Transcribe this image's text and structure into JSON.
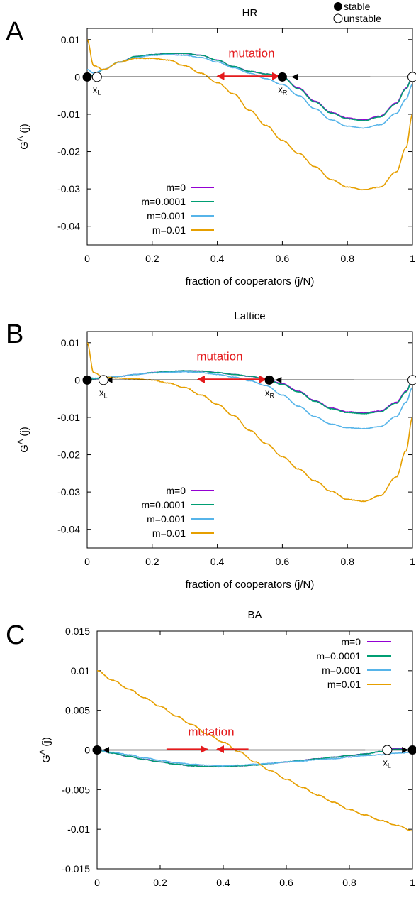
{
  "legend_key": {
    "stable": "stable",
    "unstable": "unstable"
  },
  "chart_data": [
    {
      "panel": "A",
      "type": "line",
      "title": "HR",
      "xlabel": "fraction of cooperators (j/N)",
      "ylabel": "G^A (j)",
      "xlim": [
        0,
        1
      ],
      "ylim": [
        -0.045,
        0.013
      ],
      "xticks": [
        0,
        0.2,
        0.4,
        0.6,
        0.8,
        1
      ],
      "xtick_labels": [
        "0",
        "0.2",
        "0.4",
        "0.6",
        "0.8",
        "1"
      ],
      "yticks": [
        0.01,
        0,
        -0.01,
        -0.02,
        -0.03,
        -0.04
      ],
      "ytick_labels": [
        "0.01",
        "0",
        "-0.01",
        "-0.02",
        "-0.03",
        "-0.04"
      ],
      "grid": false,
      "legend_position": "bottom-left",
      "annotation": "mutation",
      "fixed_points": [
        {
          "x": 0,
          "type": "stable",
          "label": ""
        },
        {
          "x": 0.03,
          "type": "unstable",
          "label": "x_L"
        },
        {
          "x": 0.6,
          "type": "stable",
          "label": "x_R"
        },
        {
          "x": 1,
          "type": "unstable",
          "label": ""
        }
      ],
      "flow_arrows": [
        {
          "from": 0.47,
          "to": 0.02
        },
        {
          "from": 0.87,
          "to": 0.63
        }
      ],
      "mutation_arrows": [
        {
          "from": 0.5,
          "to": 0.4
        },
        {
          "from": 0.5,
          "to": 0.59
        }
      ],
      "x": [
        0,
        0.02,
        0.05,
        0.1,
        0.15,
        0.2,
        0.25,
        0.3,
        0.35,
        0.4,
        0.45,
        0.5,
        0.55,
        0.6,
        0.65,
        0.7,
        0.75,
        0.8,
        0.85,
        0.9,
        0.95,
        0.98,
        1
      ],
      "series": [
        {
          "name": "m=0",
          "color": "#9400d3",
          "values": [
            0,
            0.0005,
            0.002,
            0.004,
            0.0055,
            0.006,
            0.0063,
            0.0063,
            0.0058,
            0.0045,
            0.0028,
            0.0015,
            0.0008,
            0,
            -0.003,
            -0.0065,
            -0.0095,
            -0.011,
            -0.0115,
            -0.0105,
            -0.007,
            -0.003,
            0
          ]
        },
        {
          "name": "m=0.0001",
          "color": "#009e73",
          "values": [
            0,
            0.0005,
            0.002,
            0.004,
            0.0055,
            0.006,
            0.0063,
            0.0063,
            0.0058,
            0.0045,
            0.0028,
            0.0015,
            0.0008,
            0,
            -0.0032,
            -0.0067,
            -0.0097,
            -0.0112,
            -0.0117,
            -0.0107,
            -0.0072,
            -0.0032,
            0
          ]
        },
        {
          "name": "m=0.001",
          "color": "#56b4e9",
          "values": [
            0.002,
            0.001,
            0.002,
            0.004,
            0.0052,
            0.0058,
            0.006,
            0.0058,
            0.0052,
            0.004,
            0.0025,
            0.001,
            -0.0005,
            -0.002,
            -0.005,
            -0.0085,
            -0.0115,
            -0.0132,
            -0.0137,
            -0.0128,
            -0.0098,
            -0.006,
            -0.002
          ]
        },
        {
          "name": "m=0.01",
          "color": "#e69f00",
          "values": [
            0.01,
            0.003,
            0.002,
            0.004,
            0.005,
            0.005,
            0.0045,
            0.003,
            0.001,
            -0.0015,
            -0.0045,
            -0.009,
            -0.013,
            -0.017,
            -0.0205,
            -0.024,
            -0.0275,
            -0.0295,
            -0.0302,
            -0.0295,
            -0.0255,
            -0.019,
            -0.01
          ]
        }
      ]
    },
    {
      "panel": "B",
      "type": "line",
      "title": "Lattice",
      "xlabel": "fraction of cooperators (j/N)",
      "ylabel": "G^A (j)",
      "xlim": [
        0,
        1
      ],
      "ylim": [
        -0.045,
        0.013
      ],
      "xticks": [
        0,
        0.2,
        0.4,
        0.6,
        0.8,
        1
      ],
      "xtick_labels": [
        "0",
        "0.2",
        "0.4",
        "0.6",
        "0.8",
        "1"
      ],
      "yticks": [
        0.01,
        0,
        -0.01,
        -0.02,
        -0.03,
        -0.04
      ],
      "ytick_labels": [
        "0.01",
        "0",
        "-0.01",
        "-0.02",
        "-0.03",
        "-0.04"
      ],
      "grid": false,
      "legend_position": "bottom-left",
      "annotation": "mutation",
      "fixed_points": [
        {
          "x": 0,
          "type": "stable",
          "label": ""
        },
        {
          "x": 0.05,
          "type": "unstable",
          "label": "x_L"
        },
        {
          "x": 0.56,
          "type": "stable",
          "label": "x_R"
        },
        {
          "x": 1,
          "type": "unstable",
          "label": ""
        }
      ],
      "flow_arrows": [
        {
          "from": 0.45,
          "to": 0.06
        },
        {
          "from": 0.82,
          "to": 0.58
        }
      ],
      "mutation_arrows": [
        {
          "from": 0.45,
          "to": 0.34
        },
        {
          "from": 0.45,
          "to": 0.55
        }
      ],
      "x": [
        0,
        0.02,
        0.05,
        0.1,
        0.15,
        0.2,
        0.25,
        0.3,
        0.35,
        0.4,
        0.45,
        0.5,
        0.55,
        0.6,
        0.65,
        0.7,
        0.75,
        0.8,
        0.85,
        0.9,
        0.95,
        0.98,
        1
      ],
      "series": [
        {
          "name": "m=0",
          "color": "#9400d3",
          "values": [
            0,
            0.0003,
            0.0006,
            0.001,
            0.0015,
            0.002,
            0.0023,
            0.0025,
            0.0024,
            0.002,
            0.0015,
            0.001,
            0.0003,
            -0.001,
            -0.003,
            -0.0055,
            -0.0075,
            -0.0085,
            -0.0088,
            -0.0083,
            -0.006,
            -0.003,
            0
          ]
        },
        {
          "name": "m=0.0001",
          "color": "#009e73",
          "values": [
            0,
            0.0003,
            0.0006,
            0.001,
            0.0015,
            0.002,
            0.0023,
            0.0025,
            0.0024,
            0.002,
            0.0015,
            0.001,
            0.0003,
            -0.0012,
            -0.0032,
            -0.0057,
            -0.0077,
            -0.0087,
            -0.009,
            -0.0085,
            -0.0062,
            -0.0032,
            0
          ]
        },
        {
          "name": "m=0.001",
          "color": "#56b4e9",
          "values": [
            0.001,
            0.0005,
            0.0007,
            0.001,
            0.0015,
            0.0019,
            0.0021,
            0.0022,
            0.002,
            0.0015,
            0.0008,
            -0.0002,
            -0.0015,
            -0.004,
            -0.007,
            -0.0098,
            -0.0118,
            -0.0128,
            -0.013,
            -0.0125,
            -0.0098,
            -0.006,
            -0.002
          ]
        },
        {
          "name": "m=0.01",
          "color": "#e69f00",
          "values": [
            0.01,
            0.002,
            0.0008,
            0.0005,
            0.0003,
            0,
            -0.0008,
            -0.002,
            -0.004,
            -0.0065,
            -0.0095,
            -0.0135,
            -0.017,
            -0.0205,
            -0.0238,
            -0.027,
            -0.0298,
            -0.032,
            -0.0325,
            -0.031,
            -0.026,
            -0.019,
            -0.01
          ]
        }
      ]
    },
    {
      "panel": "C",
      "type": "line",
      "title": "BA",
      "xlabel": "fraction of cooperators (j/N)",
      "ylabel": "G^A (j)",
      "xlim": [
        0,
        1
      ],
      "ylim": [
        -0.015,
        0.015
      ],
      "xticks": [
        0,
        0.2,
        0.4,
        0.6,
        0.8,
        1
      ],
      "xtick_labels": [
        "0",
        "0.2",
        "0.4",
        "0.6",
        "0.8",
        "1"
      ],
      "yticks": [
        0.015,
        0.01,
        0.005,
        0,
        -0.005,
        -0.01,
        -0.015
      ],
      "ytick_labels": [
        "0.015",
        "0.01",
        "0.005",
        "0",
        "-0.005",
        "-0.01",
        "-0.015"
      ],
      "grid": false,
      "legend_position": "top-right",
      "annotation": "mutation",
      "fixed_points": [
        {
          "x": 0,
          "type": "stable",
          "label": ""
        },
        {
          "x": 0.92,
          "type": "unstable",
          "label": "x_L"
        },
        {
          "x": 1,
          "type": "stable",
          "label": ""
        }
      ],
      "flow_arrows": [
        {
          "from": 0.85,
          "to": 0.02
        },
        {
          "from": 0.935,
          "to": 0.985
        }
      ],
      "mutation_arrows": [
        {
          "from": 0.22,
          "to": 0.35
        },
        {
          "from": 0.48,
          "to": 0.38
        }
      ],
      "x": [
        0,
        0.05,
        0.1,
        0.15,
        0.2,
        0.25,
        0.3,
        0.35,
        0.4,
        0.45,
        0.5,
        0.55,
        0.6,
        0.65,
        0.7,
        0.75,
        0.8,
        0.85,
        0.9,
        0.95,
        1
      ],
      "series": [
        {
          "name": "m=0",
          "color": "#9400d3",
          "values": [
            0,
            -0.0004,
            -0.0008,
            -0.0012,
            -0.0015,
            -0.0018,
            -0.002,
            -0.0021,
            -0.0021,
            -0.002,
            -0.0019,
            -0.0017,
            -0.0015,
            -0.0013,
            -0.0011,
            -0.0009,
            -0.0007,
            -0.0005,
            -0.0002,
            0.0002,
            0
          ]
        },
        {
          "name": "m=0.0001",
          "color": "#009e73",
          "values": [
            0,
            -0.0004,
            -0.0008,
            -0.0012,
            -0.0015,
            -0.0018,
            -0.002,
            -0.0021,
            -0.0021,
            -0.002,
            -0.0019,
            -0.0017,
            -0.0015,
            -0.0013,
            -0.0011,
            -0.0009,
            -0.0007,
            -0.0005,
            -0.0002,
            0.0001,
            0
          ]
        },
        {
          "name": "m=0.001",
          "color": "#56b4e9",
          "values": [
            0,
            -0.0003,
            -0.0006,
            -0.001,
            -0.0013,
            -0.0016,
            -0.0018,
            -0.0019,
            -0.002,
            -0.0019,
            -0.0018,
            -0.0017,
            -0.0015,
            -0.0014,
            -0.0012,
            -0.0011,
            -0.0009,
            -0.0007,
            -0.0006,
            -0.0004,
            -0.0003
          ]
        },
        {
          "name": "m=0.01",
          "color": "#e69f00",
          "values": [
            0.01,
            0.0088,
            0.0077,
            0.0066,
            0.0055,
            0.0043,
            0.0032,
            0.002,
            0.001,
            -0.0002,
            -0.0015,
            -0.0026,
            -0.0037,
            -0.0047,
            -0.0057,
            -0.0066,
            -0.0075,
            -0.0082,
            -0.0089,
            -0.0095,
            -0.0102
          ]
        }
      ]
    }
  ]
}
